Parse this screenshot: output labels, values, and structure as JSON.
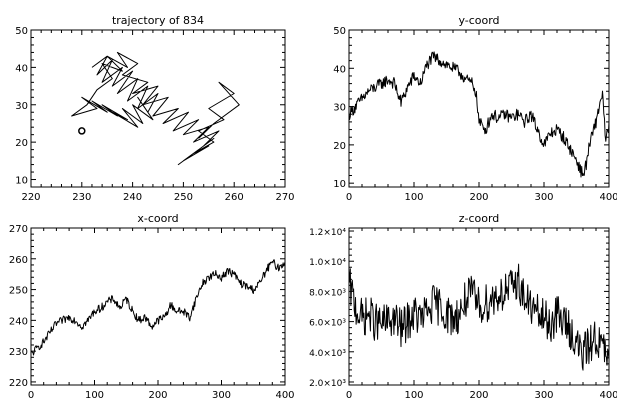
{
  "chart_data": [
    {
      "type": "line",
      "title": "trajectory of 834",
      "xlabel": "",
      "ylabel": "",
      "xlim": [
        220,
        270
      ],
      "ylim": [
        8,
        50
      ],
      "xticks": [
        "220",
        "230",
        "240",
        "250",
        "260",
        "270"
      ],
      "yticks": [
        "10",
        "20",
        "30",
        "40",
        "50"
      ],
      "grid": false,
      "series": [
        {
          "x": [
            232,
            235,
            233,
            236,
            234,
            238,
            236,
            240,
            237,
            241,
            239,
            243,
            241,
            245,
            243,
            241,
            244,
            240,
            242,
            238,
            241,
            236,
            239,
            234,
            237,
            232,
            235,
            230,
            233,
            228,
            231,
            233,
            236,
            234,
            238,
            235,
            239,
            237,
            241,
            238,
            243,
            240,
            245,
            242,
            247,
            244,
            249,
            246,
            251,
            248,
            253,
            250,
            255,
            252,
            257,
            254,
            256,
            252,
            255,
            250,
            253,
            249,
            252,
            256,
            253,
            258,
            255,
            260,
            257,
            261,
            256,
            253
          ],
          "y": [
            40,
            43,
            38,
            42,
            36,
            40,
            35,
            39,
            33,
            37,
            31,
            35,
            29,
            33,
            28,
            32,
            26,
            30,
            25,
            29,
            24,
            28,
            26,
            30,
            27,
            31,
            28,
            32,
            29,
            27,
            30,
            34,
            37,
            41,
            39,
            43,
            40,
            44,
            41,
            38,
            36,
            33,
            35,
            30,
            32,
            27,
            29,
            25,
            28,
            23,
            26,
            22,
            24,
            20,
            23,
            19,
            21,
            17,
            19,
            15,
            18,
            14,
            17,
            20,
            23,
            26,
            29,
            33,
            36,
            30,
            25,
            21
          ]
        }
      ]
    },
    {
      "type": "line",
      "title": "y-coord",
      "xlabel": "",
      "ylabel": "",
      "xlim": [
        0,
        400
      ],
      "ylim": [
        9,
        50
      ],
      "xticks": [
        "0",
        "100",
        "200",
        "300",
        "400"
      ],
      "yticks": [
        "10",
        "20",
        "30",
        "40",
        "50"
      ],
      "grid": false,
      "series": [
        {
          "x": [
            0,
            10,
            20,
            30,
            40,
            50,
            60,
            70,
            80,
            90,
            100,
            110,
            120,
            130,
            140,
            150,
            160,
            170,
            180,
            190,
            195,
            200,
            210,
            220,
            230,
            240,
            250,
            260,
            270,
            280,
            290,
            300,
            310,
            320,
            330,
            340,
            350,
            360,
            365,
            370,
            380,
            390,
            395,
            400
          ],
          "y": [
            28,
            30,
            32,
            34,
            35,
            36,
            37,
            36,
            31,
            35,
            38,
            36,
            41,
            43,
            42,
            41,
            40,
            39,
            37,
            36,
            34,
            26,
            24,
            28,
            27,
            28,
            27,
            28,
            26,
            28,
            24,
            20,
            23,
            24,
            22,
            19,
            16,
            12,
            15,
            20,
            26,
            34,
            20,
            26
          ],
          "noise": 1.6
        }
      ]
    },
    {
      "type": "line",
      "title": "x-coord",
      "xlabel": "",
      "ylabel": "",
      "xlim": [
        0,
        400
      ],
      "ylim": [
        219,
        270
      ],
      "xticks": [
        "0",
        "100",
        "200",
        "300",
        "400"
      ],
      "yticks": [
        "220",
        "230",
        "240",
        "250",
        "260",
        "270"
      ],
      "grid": false,
      "series": [
        {
          "x": [
            0,
            10,
            20,
            30,
            40,
            50,
            60,
            70,
            80,
            90,
            100,
            110,
            120,
            130,
            140,
            150,
            160,
            170,
            180,
            190,
            200,
            210,
            220,
            230,
            240,
            250,
            260,
            270,
            280,
            290,
            300,
            310,
            320,
            330,
            340,
            350,
            360,
            370,
            380,
            390,
            400
          ],
          "y": [
            229,
            231,
            233,
            236,
            239,
            240,
            241,
            240,
            238,
            240,
            243,
            244,
            246,
            247,
            244,
            247,
            243,
            240,
            241,
            238,
            240,
            241,
            245,
            243,
            243,
            241,
            247,
            252,
            254,
            255,
            254,
            256,
            255,
            252,
            251,
            250,
            252,
            256,
            259,
            257,
            259
          ],
          "noise": 1.3
        }
      ]
    },
    {
      "type": "line",
      "title": "z-coord",
      "xlabel": "",
      "ylabel": "",
      "xlim": [
        0,
        400
      ],
      "ylim": [
        1800,
        12200
      ],
      "xticks": [
        "0",
        "100",
        "200",
        "300",
        "400"
      ],
      "yticks": [
        "2.0×10³",
        "4.0×10³",
        "6.0×10³",
        "8.0×10³",
        "1.0×10⁴",
        "1.2×10⁴"
      ],
      "grid": false,
      "series": [
        {
          "x": [
            0,
            10,
            20,
            30,
            40,
            50,
            60,
            70,
            80,
            90,
            100,
            110,
            120,
            130,
            140,
            150,
            160,
            170,
            180,
            190,
            200,
            210,
            220,
            230,
            240,
            250,
            260,
            270,
            280,
            290,
            300,
            310,
            320,
            330,
            340,
            350,
            360,
            370,
            380,
            390,
            400
          ],
          "y": [
            8500,
            7000,
            6200,
            6500,
            6000,
            5800,
            6000,
            6200,
            5500,
            6000,
            6500,
            6200,
            6600,
            7200,
            7000,
            6500,
            6200,
            6500,
            7500,
            7800,
            7000,
            7200,
            7500,
            7800,
            8000,
            8200,
            8800,
            7500,
            7000,
            6500,
            6200,
            5800,
            6500,
            6000,
            5500,
            4500,
            3800,
            4500,
            5000,
            4200,
            3500
          ],
          "noise": 1300
        }
      ]
    }
  ]
}
